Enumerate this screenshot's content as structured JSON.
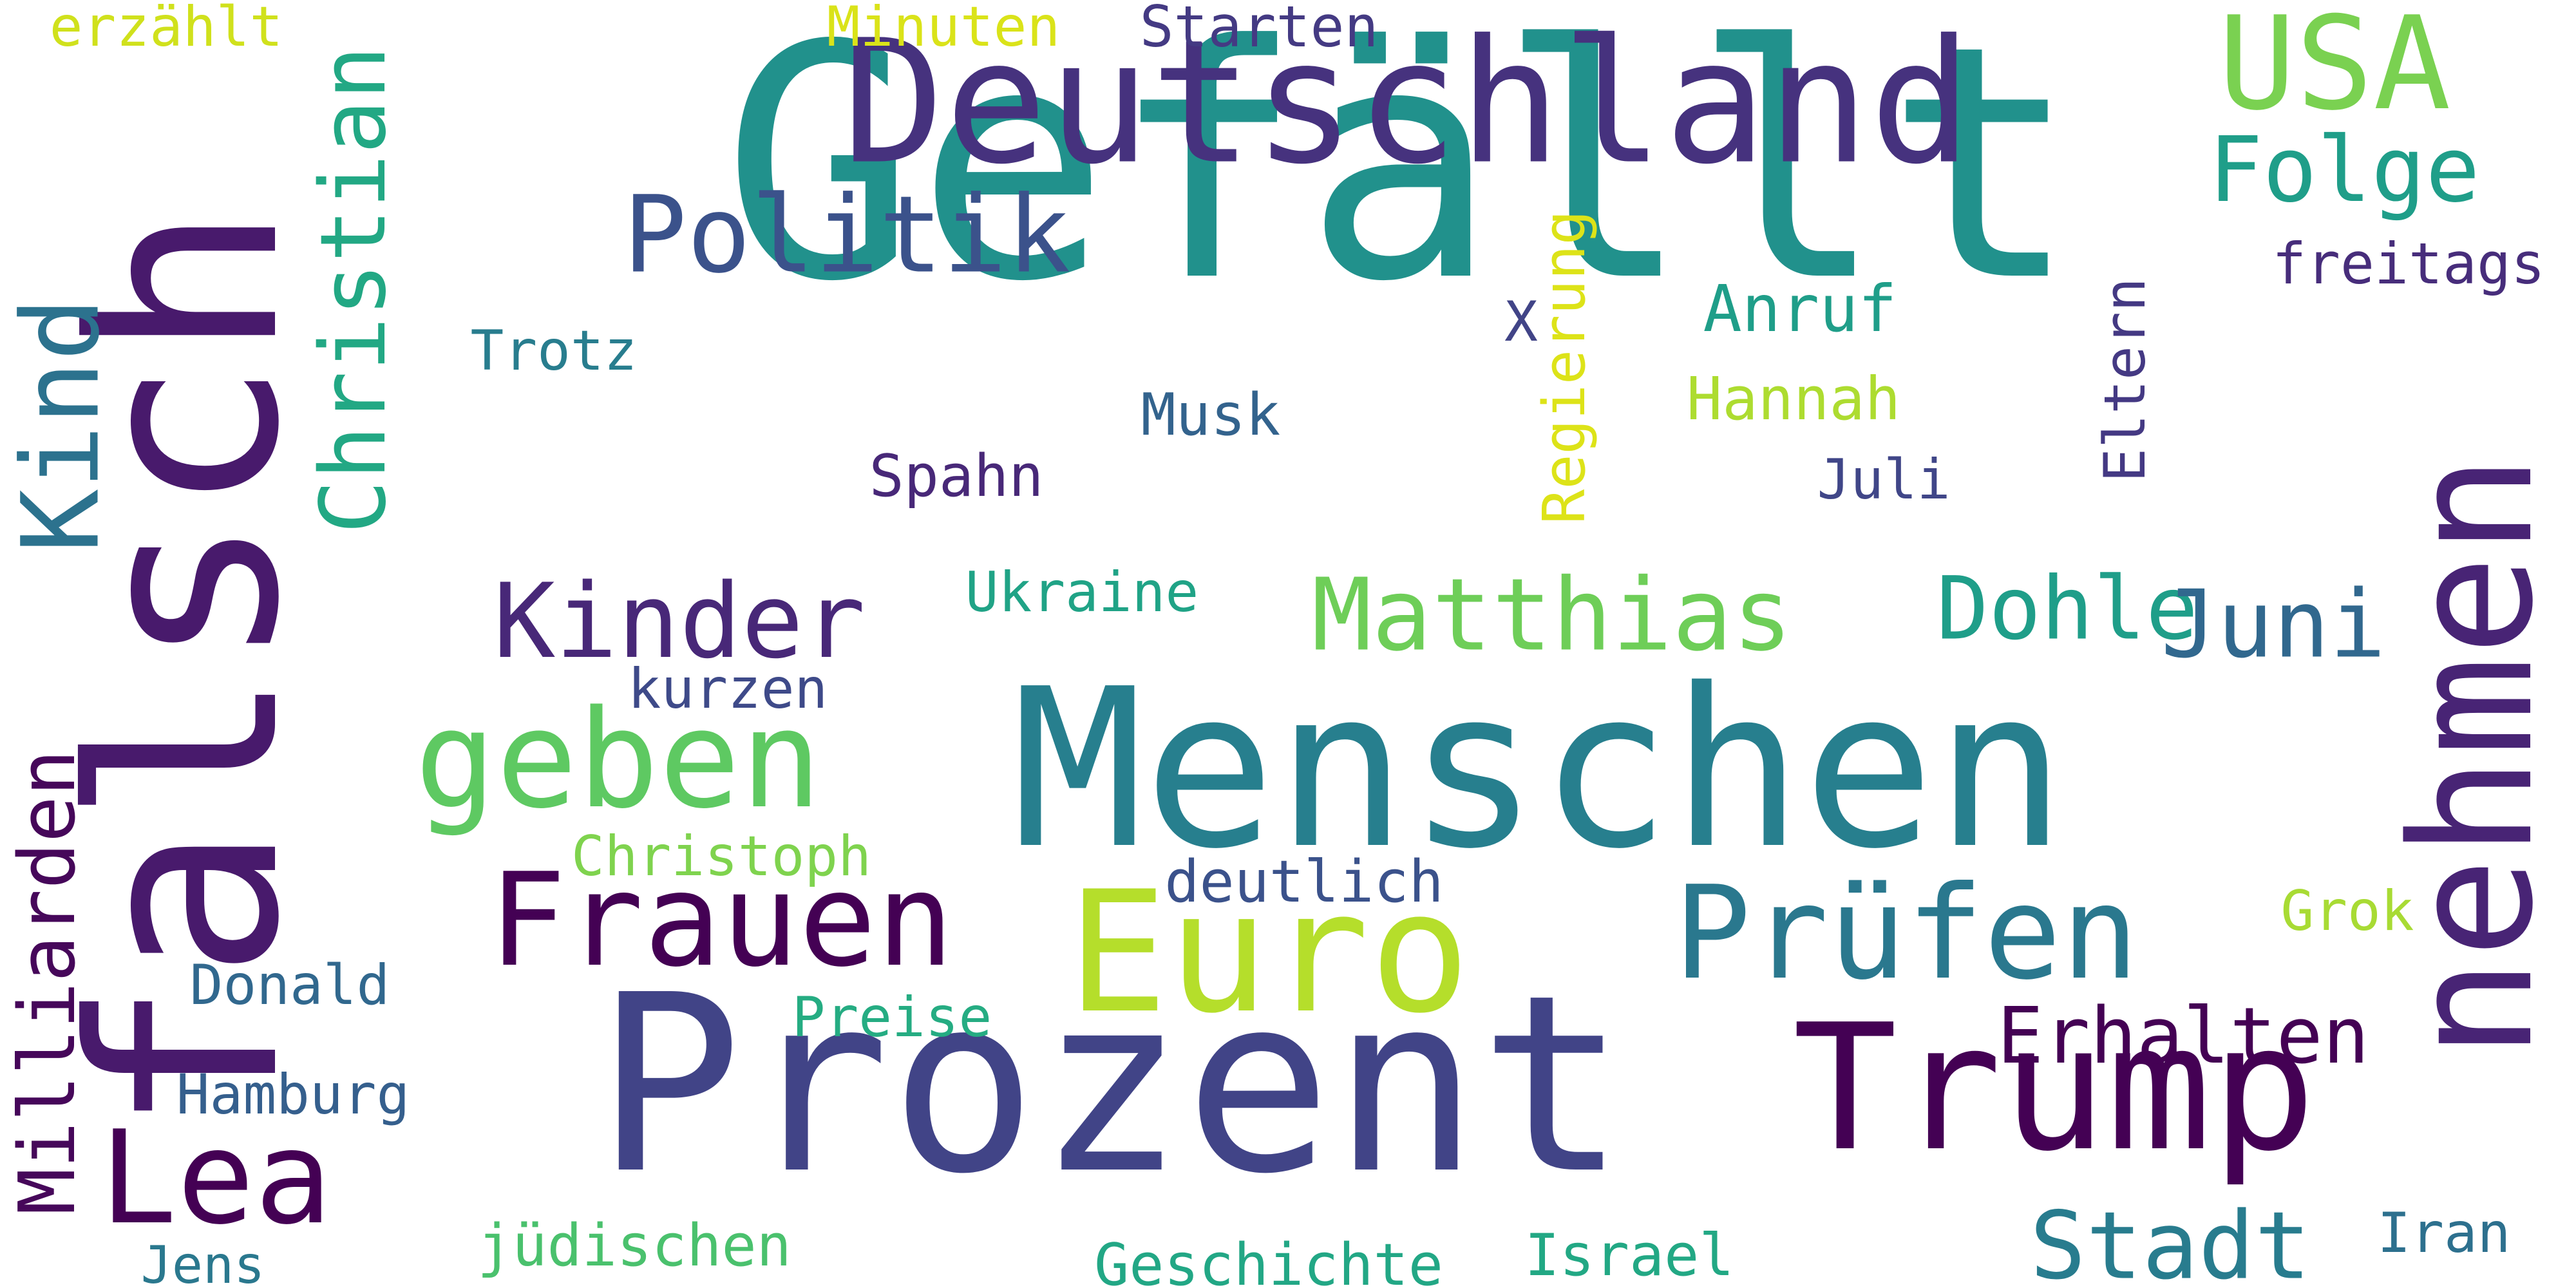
{
  "background": "#ffffff",
  "words": [
    {
      "text": "Gefällt",
      "color": "#21918c"
    },
    {
      "text": "Deutschland",
      "color": "#46327e"
    },
    {
      "text": "Menschen",
      "color": "#277f8e"
    },
    {
      "text": "Prozent",
      "color": "#414487"
    },
    {
      "text": "falsch",
      "color": "#481a6c"
    },
    {
      "text": "nehmen",
      "color": "#482475"
    },
    {
      "text": "Trump",
      "color": "#440154"
    },
    {
      "text": "Euro",
      "color": "#b5de2b"
    },
    {
      "text": "USA",
      "color": "#7ad151"
    },
    {
      "text": "Kind",
      "color": "#2c728e"
    },
    {
      "text": "Christian",
      "color": "#22a884"
    },
    {
      "text": "geben",
      "color": "#5ec962"
    },
    {
      "text": "Frauen",
      "color": "#440154"
    },
    {
      "text": "Prüfen",
      "color": "#2a788e"
    },
    {
      "text": "Lea",
      "color": "#440154"
    },
    {
      "text": "Folge",
      "color": "#1f9e89"
    },
    {
      "text": "Politik",
      "color": "#3b528b"
    },
    {
      "text": "Matthias",
      "color": "#6ece58"
    },
    {
      "text": "Kinder",
      "color": "#482878"
    },
    {
      "text": "Dohle",
      "color": "#1f9e89"
    },
    {
      "text": "Juni",
      "color": "#31688e"
    },
    {
      "text": "Erhalten",
      "color": "#440154"
    },
    {
      "text": "Stadt",
      "color": "#287c8e"
    },
    {
      "text": "Milliarden",
      "color": "#46075a"
    },
    {
      "text": "Anruf",
      "color": "#1f9e89"
    },
    {
      "text": "Hannah",
      "color": "#addc30"
    },
    {
      "text": "freitags",
      "color": "#472d7b"
    },
    {
      "text": "Regierung",
      "color": "#dde318"
    },
    {
      "text": "Eltern",
      "color": "#443983"
    },
    {
      "text": "Starten",
      "color": "#443a83"
    },
    {
      "text": "Minuten",
      "color": "#dae319"
    },
    {
      "text": "erzählt",
      "color": "#d0e11c"
    },
    {
      "text": "Trotz",
      "color": "#287d8e"
    },
    {
      "text": "X",
      "color": "#414487"
    },
    {
      "text": "Musk",
      "color": "#33638d"
    },
    {
      "text": "Spahn",
      "color": "#482878"
    },
    {
      "text": "Juli",
      "color": "#404688"
    },
    {
      "text": "Ukraine",
      "color": "#20a386"
    },
    {
      "text": "kurzen",
      "color": "#3e4a89"
    },
    {
      "text": "Christoph",
      "color": "#7fd34e"
    },
    {
      "text": "deutlich",
      "color": "#3b528b"
    },
    {
      "text": "Grok",
      "color": "#a8db34"
    },
    {
      "text": "Donald",
      "color": "#31688e"
    },
    {
      "text": "Preise",
      "color": "#25ac82"
    },
    {
      "text": "Hamburg",
      "color": "#355f8d"
    },
    {
      "text": "jüdischen",
      "color": "#4ac16d"
    },
    {
      "text": "Geschichte",
      "color": "#22a785"
    },
    {
      "text": "Israel",
      "color": "#22a884"
    },
    {
      "text": "Jens",
      "color": "#2a788e"
    },
    {
      "text": "Iran",
      "color": "#2d708e"
    }
  ]
}
